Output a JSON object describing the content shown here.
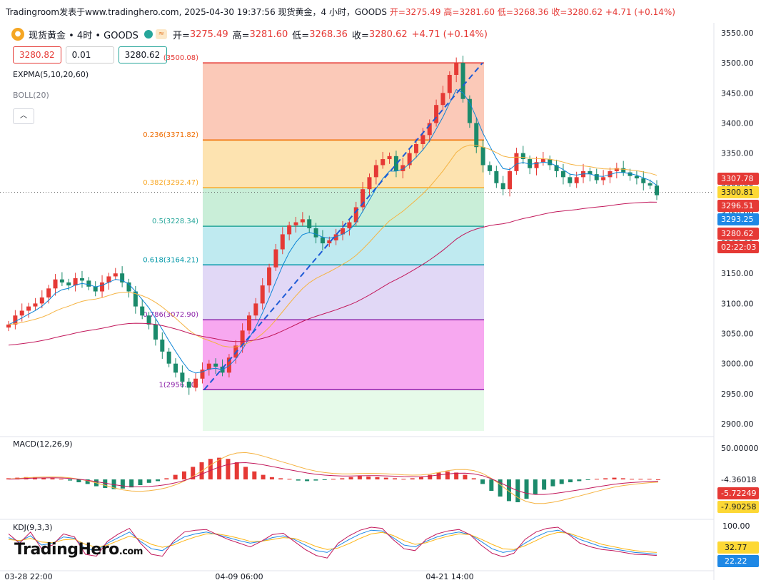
{
  "header": {
    "caption": "Tradingroom发表于www.tradinghero.com, 2025-04-30 19:37:56 现货黄金，4 小时，GOODS",
    "ohlc": "开=3275.49 高=3281.60 低=3268.36 收=3280.62 +4.71 (+0.14%)"
  },
  "legend": {
    "symbol": "现货黄金 • 4时 • GOODS",
    "open_label": "开=",
    "open": "3275.49",
    "high_label": "高=",
    "high": "3281.60",
    "low_label": "低=",
    "low": "3268.36",
    "close_label": "收=",
    "close": "3280.62",
    "change": "+4.71 (+0.14%)"
  },
  "trade": {
    "sell": "3280.82",
    "qty": "0.01",
    "buy": "3280.62"
  },
  "indicators": {
    "expma": "EXPMA(5,10,20,60)",
    "boll": "BOLL(20)",
    "macd": "MACD(12,26,9)",
    "kdj": "KDJ(9,3,3)"
  },
  "watermark": {
    "brand": "TradingHero",
    "suffix": ".com"
  },
  "colors": {
    "up": "#e53935",
    "down": "#1b8a6b",
    "fib_line": "#8e24aa",
    "trend": "#1e5bd6"
  },
  "chart_data": [
    {
      "type": "candlestick",
      "title": "现货黄金 • 4时 • GOODS",
      "ylim": [
        2880,
        3560
      ],
      "y_ticks": [
        2900,
        2950,
        3000,
        3050,
        3100,
        3150,
        3200,
        3250,
        3300,
        3350,
        3400,
        3450,
        3500,
        3550
      ],
      "y_tick_labels": [
        "2900.00",
        "2950.00",
        "3000.00",
        "3050.00",
        "3100.00",
        "3150.00",
        "3200.00",
        "3250.00",
        "3300.00",
        "3350.00",
        "3400.00",
        "3450.00",
        "3500.00",
        "3550.00"
      ],
      "x_tick_labels": [
        "03-28 22:00",
        "04-09 06:00",
        "04-21 14:00"
      ],
      "fibonacci": [
        {
          "level": "0",
          "price": 3500.08,
          "label": "(3500.08)"
        },
        {
          "level": "0.236",
          "price": 3371.82,
          "label": "0.236(3371.82)"
        },
        {
          "level": "0.382",
          "price": 3292.47,
          "label": "0.382(3292.47)"
        },
        {
          "level": "0.5",
          "price": 3228.34,
          "label": "0.5(3228.34)"
        },
        {
          "level": "0.618",
          "price": 3164.21,
          "label": "0.618(3164.21)"
        },
        {
          "level": "0.786",
          "price": 3072.9,
          "label": "0.786(3072.90)"
        },
        {
          "level": "1",
          "price": 2956.6,
          "label": "1(2956.60)"
        }
      ],
      "price_tags": [
        {
          "value": "3307.78",
          "color": "#e53935"
        },
        {
          "value": "3300.81",
          "color": "#fdd835"
        },
        {
          "value": "3296.51",
          "color": "#e53935"
        },
        {
          "value": "3293.25",
          "color": "#1e88e5"
        },
        {
          "value": "3280.62",
          "color": "#e53935"
        },
        {
          "value": "02:22:03",
          "color": "#e53935"
        }
      ],
      "close_path": [
        3065,
        3080,
        3088,
        3095,
        3100,
        3110,
        3125,
        3140,
        3135,
        3130,
        3142,
        3138,
        3128,
        3120,
        3135,
        3145,
        3150,
        3135,
        3120,
        3095,
        3080,
        3065,
        3040,
        3020,
        3000,
        2985,
        2970,
        2960,
        2975,
        2990,
        3000,
        2995,
        2985,
        3010,
        3030,
        3055,
        3080,
        3100,
        3130,
        3160,
        3190,
        3215,
        3230,
        3235,
        3240,
        3225,
        3210,
        3200,
        3205,
        3215,
        3225,
        3235,
        3260,
        3290,
        3310,
        3330,
        3340,
        3345,
        3320,
        3330,
        3350,
        3365,
        3380,
        3400,
        3430,
        3450,
        3480,
        3500,
        3440,
        3400,
        3360,
        3330,
        3320,
        3300,
        3290,
        3320,
        3350,
        3340,
        3325,
        3335,
        3340,
        3330,
        3320,
        3310,
        3300,
        3310,
        3320,
        3315,
        3305,
        3310,
        3320,
        3325,
        3318,
        3312,
        3308,
        3300,
        3296,
        3280
      ]
    },
    {
      "type": "bar",
      "title": "MACD(12,26,9)",
      "y_tick_labels": [
        "50.00000",
        "-4.36018"
      ],
      "value_tags": [
        {
          "value": "-5.72249",
          "color": "#e53935"
        },
        {
          "value": "-7.90258",
          "color": "#fdd835"
        }
      ],
      "histogram": [
        2,
        3,
        4,
        4,
        3,
        2,
        1,
        -2,
        -5,
        -8,
        -12,
        -15,
        -17,
        -16,
        -14,
        -10,
        -6,
        -3,
        2,
        8,
        14,
        22,
        30,
        36,
        38,
        36,
        30,
        22,
        14,
        8,
        4,
        2,
        1,
        -2,
        -3,
        -2,
        -1,
        1,
        2,
        4,
        6,
        5,
        4,
        3,
        2,
        1,
        2,
        4,
        8,
        12,
        14,
        12,
        8,
        2,
        -8,
        -20,
        -30,
        -38,
        -40,
        -34,
        -26,
        -18,
        -12,
        -8,
        -5,
        -3,
        -1,
        1,
        2,
        3,
        2,
        1,
        1,
        1,
        0
      ]
    },
    {
      "type": "line",
      "title": "KDJ(9,3,3)",
      "y_tick_labels": [
        "100.00"
      ],
      "value_tags": [
        {
          "value": "32.77",
          "color": "#fdd835"
        },
        {
          "value": "22.22",
          "color": "#1e88e5"
        }
      ],
      "series": [
        {
          "values": [
            70,
            60,
            75,
            50,
            55,
            72,
            68,
            40,
            35,
            55,
            70,
            85,
            60,
            40,
            35,
            55,
            72,
            80,
            85,
            78,
            70,
            62,
            55,
            60,
            70,
            75,
            65,
            50,
            35,
            30,
            48,
            65,
            80,
            90,
            88,
            70,
            50,
            45,
            60,
            72,
            80,
            85,
            78,
            60,
            40,
            30,
            35,
            55,
            72,
            85,
            90,
            80,
            65,
            55,
            45,
            40,
            35,
            30,
            28,
            25
          ]
        },
        {
          "values": [
            65,
            62,
            68,
            58,
            56,
            64,
            66,
            52,
            44,
            50,
            62,
            74,
            66,
            52,
            44,
            50,
            62,
            72,
            80,
            80,
            75,
            68,
            60,
            60,
            65,
            70,
            68,
            58,
            46,
            38,
            42,
            54,
            68,
            80,
            84,
            76,
            62,
            52,
            56,
            66,
            74,
            80,
            78,
            66,
            52,
            40,
            38,
            48,
            62,
            76,
            84,
            82,
            72,
            62,
            52,
            46,
            40,
            35,
            32,
            30
          ]
        },
        {
          "values": [
            80,
            55,
            85,
            40,
            50,
            80,
            72,
            25,
            20,
            60,
            80,
            95,
            55,
            25,
            20,
            60,
            85,
            90,
            92,
            78,
            65,
            55,
            45,
            60,
            78,
            82,
            60,
            38,
            22,
            15,
            55,
            75,
            90,
            98,
            95,
            65,
            40,
            35,
            65,
            80,
            88,
            92,
            78,
            50,
            28,
            18,
            28,
            65,
            85,
            95,
            98,
            78,
            55,
            45,
            38,
            35,
            30,
            25,
            24,
            22
          ]
        }
      ]
    }
  ]
}
